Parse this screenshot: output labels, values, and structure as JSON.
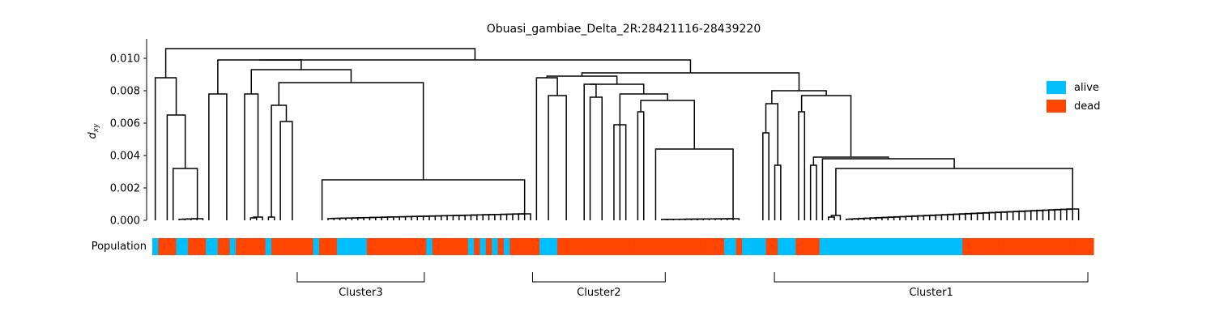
{
  "chart_data": {
    "type": "dendrogram",
    "title": "Obuasi_gambiae_Delta_2R:28421116-28439220",
    "ylabel": "d",
    "ylabel_subscript": "xy",
    "ylim": [
      0,
      0.0112
    ],
    "yticks": [
      "0.000",
      "0.002",
      "0.004",
      "0.006",
      "0.008",
      "0.010"
    ],
    "population_label": "Population",
    "legend": {
      "position": "right",
      "entries": [
        {
          "label": "alive",
          "color": "#00BFFF"
        },
        {
          "label": "dead",
          "color": "#FF4500"
        }
      ]
    },
    "merge_heights": {
      "root": 0.0106,
      "left_group": 0.0088,
      "left_sub": 0.0065,
      "left_small": 0.0032,
      "second_group": 0.0099,
      "cluster3_branch": 0.0085,
      "cluster3_tight": 0.0025,
      "cluster2_group": 0.0089,
      "cluster2_branch": 0.0084,
      "cluster2_tight": 0.0044,
      "cluster1_group": 0.008,
      "cluster1_branch": 0.0077,
      "cluster1_tight": 0.0032
    },
    "population_colors": [
      "alive",
      "dead",
      "dead",
      "dead",
      "alive",
      "alive",
      "dead",
      "dead",
      "dead",
      "alive",
      "alive",
      "dead",
      "dead",
      "alive",
      "dead",
      "dead",
      "dead",
      "dead",
      "dead",
      "alive",
      "dead",
      "dead",
      "dead",
      "dead",
      "dead",
      "dead",
      "dead",
      "alive",
      "dead",
      "dead",
      "dead",
      "alive",
      "alive",
      "alive",
      "alive",
      "alive",
      "dead",
      "dead",
      "dead",
      "dead",
      "dead",
      "dead",
      "dead",
      "dead",
      "dead",
      "dead",
      "alive",
      "dead",
      "dead",
      "dead",
      "dead",
      "dead",
      "dead",
      "alive",
      "dead",
      "alive",
      "dead",
      "alive",
      "dead",
      "alive",
      "dead",
      "dead",
      "dead",
      "dead",
      "dead",
      "alive",
      "alive",
      "alive",
      "dead",
      "dead",
      "dead",
      "dead",
      "dead",
      "dead",
      "dead",
      "dead",
      "dead",
      "dead",
      "dead",
      "dead",
      "dead",
      "dead",
      "dead",
      "dead",
      "dead",
      "dead",
      "dead",
      "dead",
      "dead",
      "dead",
      "dead",
      "dead",
      "dead",
      "dead",
      "dead",
      "dead",
      "alive",
      "alive",
      "dead",
      "alive",
      "alive",
      "alive",
      "alive",
      "dead",
      "dead",
      "alive",
      "alive",
      "alive",
      "dead",
      "dead",
      "dead",
      "dead",
      "alive",
      "alive",
      "alive",
      "alive",
      "alive",
      "alive",
      "alive",
      "alive",
      "alive",
      "alive",
      "alive",
      "alive",
      "alive",
      "alive",
      "alive",
      "alive",
      "alive",
      "alive",
      "alive",
      "alive",
      "alive",
      "alive",
      "alive",
      "alive",
      "dead",
      "dead",
      "dead",
      "dead",
      "dead",
      "dead",
      "dead",
      "dead",
      "dead",
      "dead",
      "dead",
      "dead",
      "dead",
      "dead",
      "dead",
      "dead",
      "dead",
      "dead",
      "dead",
      "dead",
      "dead",
      "dead"
    ],
    "clusters": [
      {
        "label": "Cluster3",
        "start_frac": 0.154,
        "end_frac": 0.289
      },
      {
        "label": "Cluster2",
        "start_frac": 0.404,
        "end_frac": 0.545
      },
      {
        "label": "Cluster1",
        "start_frac": 0.661,
        "end_frac": 0.994
      }
    ]
  }
}
